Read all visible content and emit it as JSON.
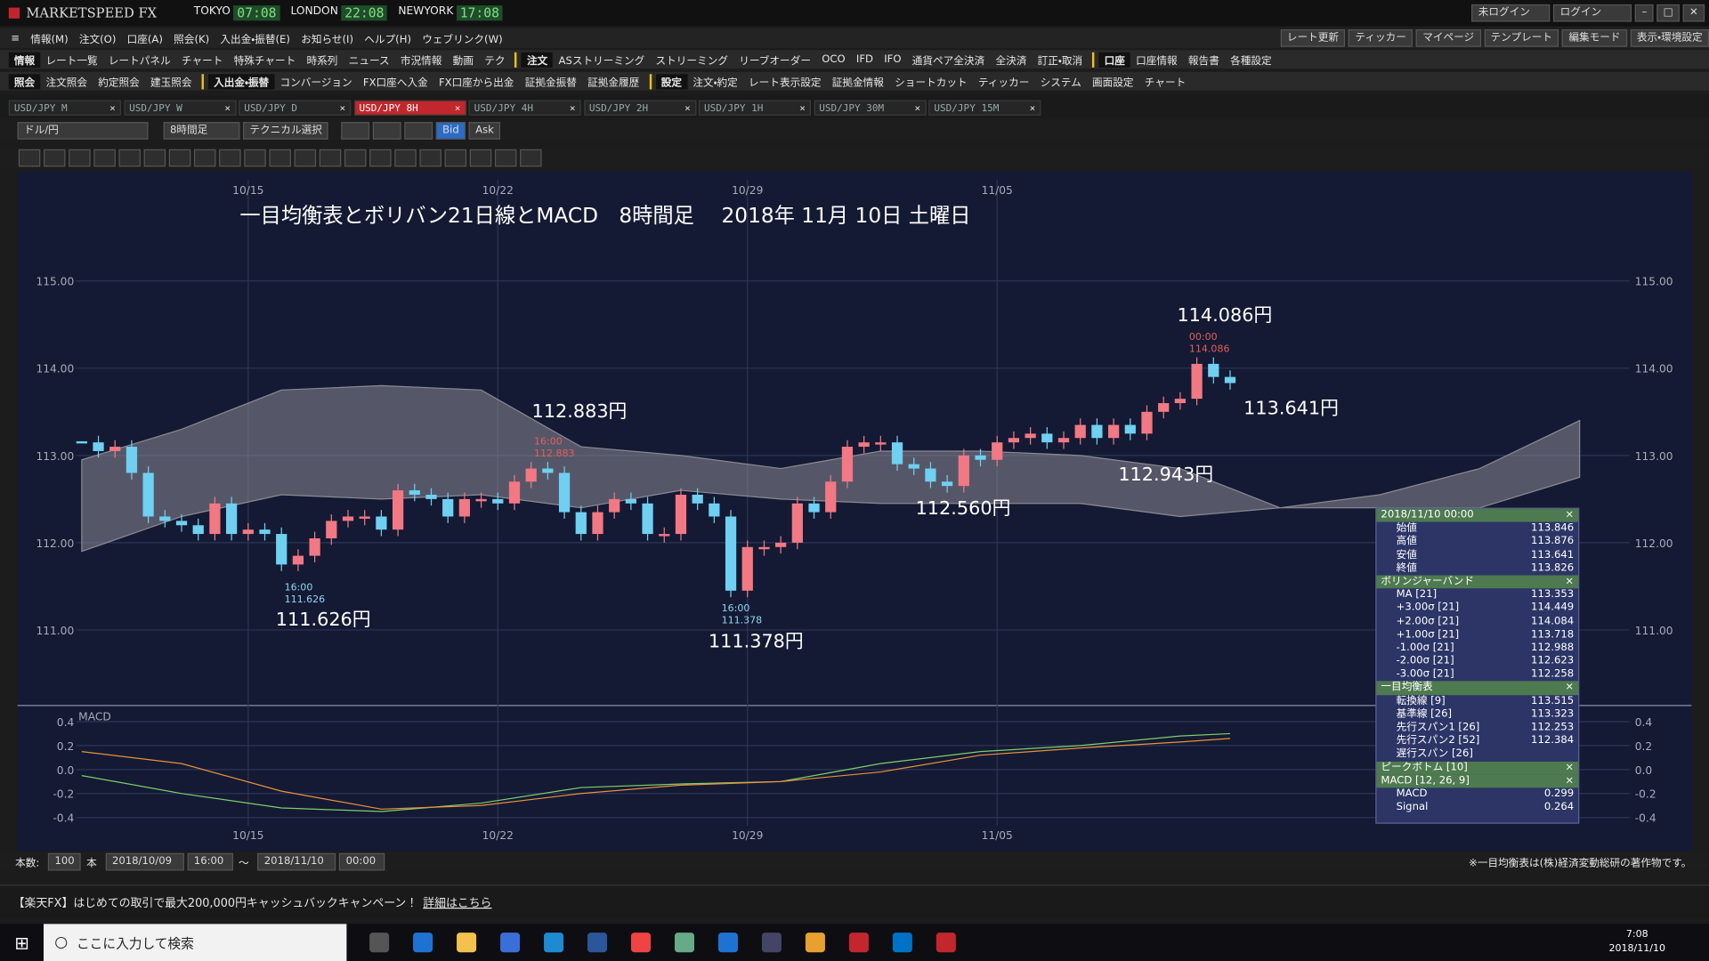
{
  "app": {
    "title": "MARKETSPEED FX",
    "clocks": [
      {
        "city": "TOKYO",
        "time": "07:08"
      },
      {
        "city": "LONDON",
        "time": "22:08"
      },
      {
        "city": "NEWYORK",
        "time": "17:08"
      }
    ],
    "login_status": "未ログイン",
    "login": "ログイン"
  },
  "menu": [
    "情報(M)",
    "注文(O)",
    "口座(A)",
    "照会(K)",
    "入出金・振替(E)",
    "お知らせ(I)",
    "ヘルプ(H)",
    "ウェブリンク(W)"
  ],
  "toolbar_right": [
    "レート更新",
    "ティッカー",
    "マイページ",
    "テンプレート",
    "編集モード",
    "表示・環境設定"
  ],
  "toolbar1": [
    "情報",
    "レート一覧",
    "レートパネル",
    "チャート",
    "特殊チャート",
    "時系列",
    "ニュース",
    "市況情報",
    "動画",
    "テク",
    "注文",
    "ASストリーミング",
    "ストリーミング",
    "リーブオーダー",
    "OCO",
    "IFD",
    "IFO",
    "通貨ペア全決済",
    "全決済",
    "訂正・取消",
    "口座",
    "口座情報",
    "報告書",
    "各種設定"
  ],
  "toolbar2": [
    "照会",
    "注文照会",
    "約定照会",
    "建玉照会",
    "入出金・振替",
    "コンバージョン",
    "FX口座へ入金",
    "FX口座から出金",
    "証拠金振替",
    "証拠金履歴",
    "設定",
    "注文・約定",
    "レート表示設定",
    "証拠金情報",
    "ショートカット",
    "ティッカー",
    "システム",
    "画面設定",
    "チャート"
  ],
  "tabs": [
    "USD/JPY M",
    "USD/JPY W",
    "USD/JPY D",
    "USD/JPY 8H",
    "USD/JPY 4H",
    "USD/JPY 2H",
    "USD/JPY 1H",
    "USD/JPY 30M",
    "USD/JPY 15M"
  ],
  "active_tab": 3,
  "chart_toolbar": {
    "pair": "ドル/円",
    "period": "8時間足",
    "technical": "テクニカル選択",
    "bid": "Bid",
    "ask": "Ask"
  },
  "chart_data": {
    "type": "candlestick",
    "title": "一目均衡表とボリバン21日線とMACD　8時間足　 2018年 11月 10日 土曜日",
    "xlim": [
      -1,
      93
    ],
    "xticks": [
      {
        "value": 10,
        "label": "10/15"
      },
      {
        "value": 25,
        "label": "10/22"
      },
      {
        "value": 40,
        "label": "10/29"
      },
      {
        "value": 55,
        "label": "11/05"
      }
    ],
    "ylim": [
      110.14,
      116.26
    ],
    "yticks": [
      {
        "value": 111,
        "label": "111.00"
      },
      {
        "value": 112,
        "label": "112.00"
      },
      {
        "value": 113,
        "label": "113.00"
      },
      {
        "value": 114,
        "label": "114.00"
      },
      {
        "value": 115,
        "label": "115.00"
      }
    ],
    "closes": [
      113.15,
      113.05,
      113.1,
      112.8,
      112.3,
      112.25,
      112.2,
      112.1,
      112.45,
      112.1,
      112.15,
      112.1,
      111.75,
      111.85,
      112.05,
      112.25,
      112.3,
      112.3,
      112.15,
      112.6,
      112.55,
      112.5,
      112.3,
      112.5,
      112.5,
      112.45,
      112.7,
      112.85,
      112.8,
      112.35,
      112.1,
      112.35,
      112.5,
      112.45,
      112.1,
      112.1,
      112.55,
      112.45,
      112.3,
      111.45,
      111.95,
      111.95,
      112.0,
      112.45,
      112.35,
      112.7,
      113.1,
      113.15,
      113.15,
      112.9,
      112.85,
      112.7,
      112.65,
      113.0,
      112.95,
      113.15,
      113.2,
      113.25,
      113.15,
      113.2,
      113.35,
      113.2,
      113.35,
      113.25,
      113.5,
      113.6,
      113.65,
      114.05,
      113.9,
      113.83
    ],
    "up_color": "#f27884",
    "down_color": "#6fd0f2",
    "cloud_x": [
      0,
      6,
      12,
      18,
      24,
      30,
      36,
      42,
      48,
      54,
      60,
      66,
      72,
      78,
      84,
      90
    ],
    "span_a": [
      112.95,
      113.3,
      113.75,
      113.8,
      113.75,
      113.1,
      113.0,
      112.85,
      113.05,
      113.05,
      113.0,
      112.85,
      112.4,
      112.55,
      112.85,
      113.4
    ],
    "span_b": [
      111.9,
      112.3,
      112.55,
      112.5,
      112.55,
      112.4,
      112.6,
      112.5,
      112.45,
      112.45,
      112.45,
      112.3,
      112.4,
      112.4,
      112.4,
      112.75
    ],
    "cloud_color": "#8a8a93",
    "annotations": [
      "112.883円",
      "111.626円",
      "111.378円",
      "114.086円",
      "113.641円",
      "112.943円",
      "112.560円"
    ],
    "small_labels": [
      {
        "time": "16:00",
        "price": "112.883"
      },
      {
        "time": "16:00",
        "price": "111.626"
      },
      {
        "time": "16:00",
        "price": "111.378"
      },
      {
        "time": "00:00",
        "price": "114.086"
      }
    ],
    "macd": {
      "label": "MACD",
      "ylim": [
        -0.47,
        0.53
      ],
      "yticks": [
        -0.4,
        -0.2,
        {
          "value": 0,
          "label": "0.0"
        },
        0.2,
        0.4
      ],
      "x": [
        0,
        6,
        12,
        18,
        24,
        30,
        36,
        42,
        48,
        54,
        60,
        66,
        69
      ],
      "series": [
        {
          "name": "MACD",
          "color": "#7ccf6a",
          "values": [
            -0.05,
            -0.2,
            -0.32,
            -0.35,
            -0.28,
            -0.15,
            -0.12,
            -0.1,
            0.05,
            0.15,
            0.2,
            0.28,
            0.3
          ]
        },
        {
          "name": "Signal",
          "color": "#e8913a",
          "values": [
            0.15,
            0.05,
            -0.18,
            -0.33,
            -0.3,
            -0.2,
            -0.13,
            -0.1,
            -0.02,
            0.12,
            0.18,
            0.23,
            0.26
          ]
        }
      ]
    }
  },
  "info_panel": [
    {
      "header": "2018/11/10 00:00",
      "rows": [
        [
          "始値",
          "113.846"
        ],
        [
          "高値",
          "113.876"
        ],
        [
          "安値",
          "113.641"
        ],
        [
          "終値",
          "113.826"
        ]
      ]
    },
    {
      "header": "ボリンジャーバンド",
      "rows": [
        [
          "MA [21]",
          "113.353"
        ],
        [
          "+3.00σ [21]",
          "114.449"
        ],
        [
          "+2.00σ [21]",
          "114.084"
        ],
        [
          "+1.00σ [21]",
          "113.718"
        ],
        [
          "-1.00σ [21]",
          "112.988"
        ],
        [
          "-2.00σ [21]",
          "112.623"
        ],
        [
          "-3.00σ [21]",
          "112.258"
        ]
      ]
    },
    {
      "header": "一目均衡表",
      "rows": [
        [
          "転換線 [9]",
          "113.515"
        ],
        [
          "基準線 [26]",
          "113.323"
        ],
        [
          "先行スパン1 [26]",
          "112.253"
        ],
        [
          "先行スパン2 [52]",
          "112.384"
        ],
        [
          "遅行スパン [26]"
        ]
      ]
    },
    {
      "header": "ピークボトム [10]",
      "rows": []
    },
    {
      "header": "MACD [12, 26, 9]",
      "rows": [
        [
          "MACD",
          "0.299"
        ],
        [
          "Signal",
          "0.264"
        ]
      ]
    }
  ],
  "footer": {
    "count_label": "本数:",
    "count": "100",
    "unit": "本",
    "from_date": "2018/10/09",
    "from_time": "16:00",
    "tilde": "～",
    "to_date": "2018/11/10",
    "to_time": "00:00",
    "note": "※一目均衡表は(株)経済変動総研の著作物です。"
  },
  "ad": {
    "text": "【楽天FX】はじめての取引で最大200,000円キャッシュバックキャンペーン！",
    "link": "詳細はこちら"
  },
  "taskbar": {
    "search": "ここに入力して検索",
    "time": "7:08",
    "date": "2018/11/10"
  }
}
